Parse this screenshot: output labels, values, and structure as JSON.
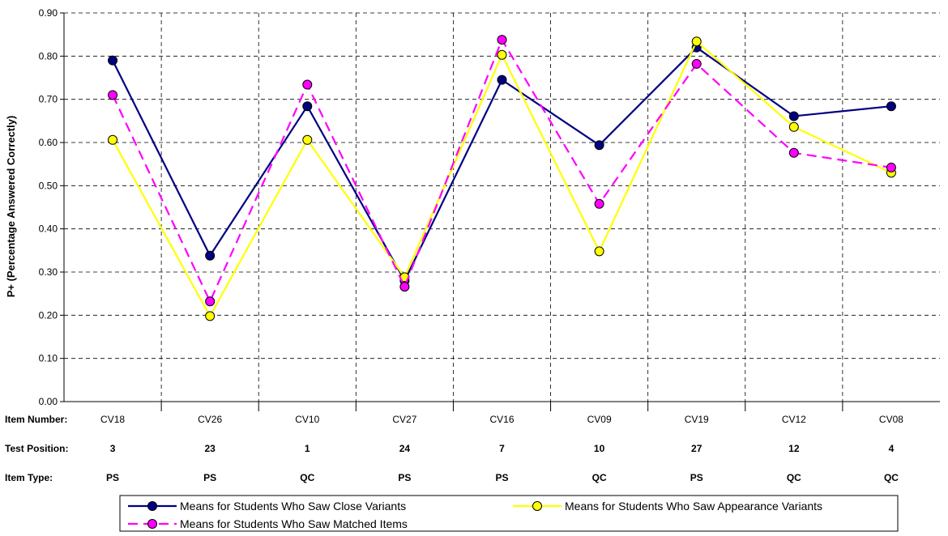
{
  "chart_data": {
    "type": "line",
    "ylabel": "P+ (Percentage Answered Correctly)",
    "ylim": [
      0,
      0.9
    ],
    "yticks": [
      "0.00",
      "0.10",
      "0.20",
      "0.30",
      "0.40",
      "0.50",
      "0.60",
      "0.70",
      "0.80",
      "0.90"
    ],
    "grid": true,
    "legend_position": "bottom",
    "categories": [
      "CV18",
      "CV26",
      "CV10",
      "CV27",
      "CV16",
      "CV09",
      "CV19",
      "CV12",
      "CV08"
    ],
    "row_labels": {
      "item_number": "Item Number:",
      "test_position": "Test Position:",
      "item_type": "Item Type:"
    },
    "test_positions": [
      "3",
      "23",
      "1",
      "24",
      "7",
      "10",
      "27",
      "12",
      "4"
    ],
    "item_types": [
      "PS",
      "PS",
      "QC",
      "PS",
      "PS",
      "QC",
      "PS",
      "QC",
      "QC"
    ],
    "series": [
      {
        "name": "Means for Students Who Saw Close Variants",
        "line_color": "#000080",
        "marker_fill": "#000080",
        "dash": "solid",
        "values": [
          0.79,
          0.338,
          0.684,
          0.28,
          0.745,
          0.594,
          0.82,
          0.661,
          0.684
        ]
      },
      {
        "name": "Means for Students Who Saw Appearance Variants",
        "line_color": "#FFFF00",
        "marker_fill": "#FFFF00",
        "dash": "solid",
        "values": [
          0.606,
          0.198,
          0.606,
          0.288,
          0.803,
          0.348,
          0.834,
          0.636,
          0.53
        ]
      },
      {
        "name": "Means for Students Who Saw Matched Items",
        "line_color": "#FF00FF",
        "marker_fill": "#FF00FF",
        "dash": "dashed",
        "values": [
          0.71,
          0.232,
          0.734,
          0.266,
          0.838,
          0.458,
          0.782,
          0.576,
          0.542
        ]
      }
    ]
  }
}
